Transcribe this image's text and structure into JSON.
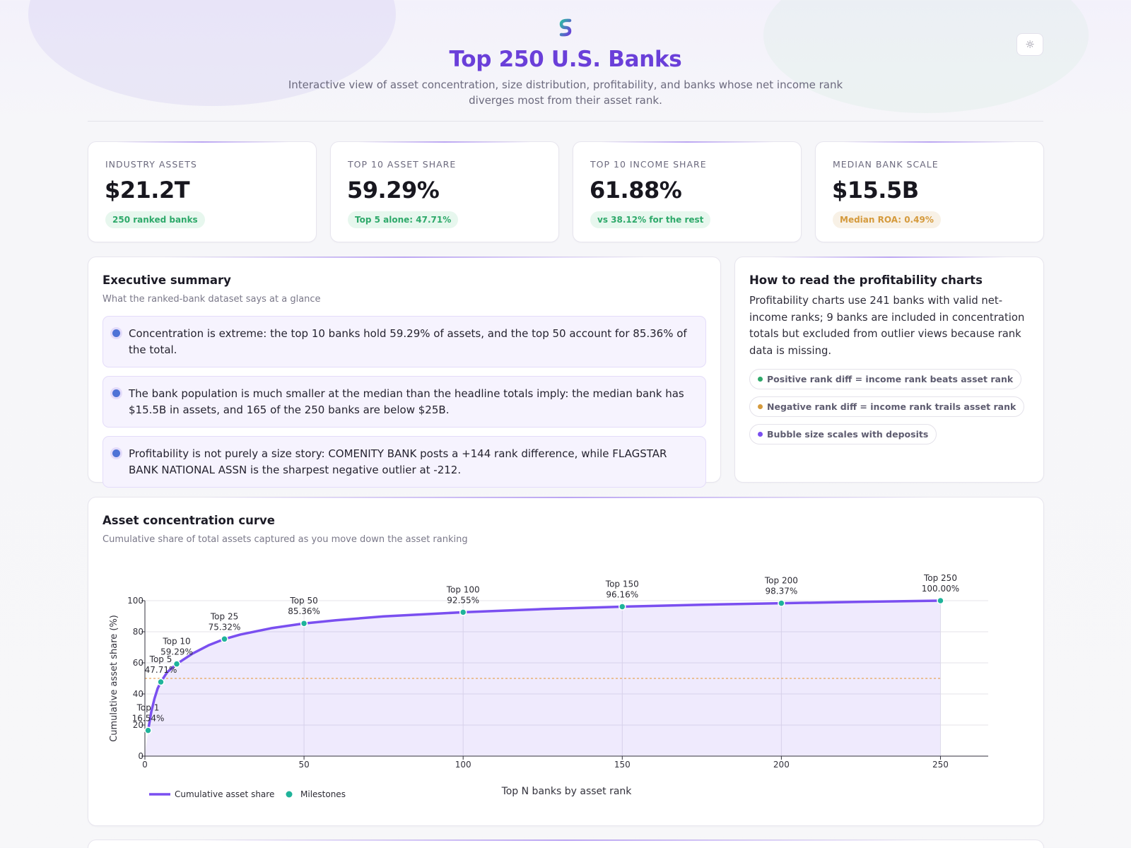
{
  "header": {
    "title": "Top 250 U.S. Banks",
    "subtitle": "Interactive view of asset concentration, size distribution, profitability, and banks whose net income rank diverges most from their asset rank.",
    "theme_icon": "sun-icon"
  },
  "kpis": [
    {
      "label": "INDUSTRY ASSETS",
      "value": "$21.2T",
      "badge": "250 ranked banks",
      "badge_color": "#2ea96a"
    },
    {
      "label": "TOP 10 ASSET SHARE",
      "value": "59.29%",
      "badge": "Top 5 alone: 47.71%",
      "badge_color": "#2ea96a"
    },
    {
      "label": "TOP 10 INCOME SHARE",
      "value": "61.88%",
      "badge": "vs 38.12% for the rest",
      "badge_color": "#2ea96a"
    },
    {
      "label": "MEDIAN BANK SCALE",
      "value": "$15.5B",
      "badge": "Median ROA: 0.49%",
      "badge_color": "#d59a3c"
    }
  ],
  "summary": {
    "title": "Executive summary",
    "subtitle": "What the ranked-bank dataset says at a glance",
    "points": [
      "Concentration is extreme: the top 10 banks hold 59.29% of assets, and the top 50 account for 85.36% of the total.",
      "The bank population is much smaller at the median than the headline totals imply: the median bank has $15.5B in assets, and 165 of the 250 banks are below $25B.",
      "Profitability is not purely a size story: COMENITY BANK posts a +144 rank difference, while FLAGSTAR BANK NATIONAL ASSN is the sharpest negative outlier at -212."
    ]
  },
  "howto": {
    "title": "How to read the profitability charts",
    "text": "Profitability charts use 241 banks with valid net-income ranks; 9 banks are included in concentration totals but excluded from outlier views because rank data is missing.",
    "pills": [
      {
        "label": "Positive rank diff = income rank beats asset rank",
        "color": "#2ea96a"
      },
      {
        "label": "Negative rank diff = income rank trails asset rank",
        "color": "#d59a3c"
      },
      {
        "label": "Bubble size scales with deposits",
        "color": "#7a4ff0"
      }
    ]
  },
  "concentration": {
    "title": "Asset concentration curve",
    "subtitle": "Cumulative share of total assets captured as you move down the asset ranking"
  },
  "chart_data": {
    "type": "line",
    "xlabel": "Top N banks by asset rank",
    "ylabel": "Cumulative asset share (%)",
    "xlim": [
      0,
      265
    ],
    "ylim": [
      0,
      100
    ],
    "x_ticks": [
      0,
      50,
      100,
      150,
      200,
      250
    ],
    "y_ticks": [
      0,
      20,
      40,
      60,
      80,
      100
    ],
    "reference_line_y": 50,
    "series": [
      {
        "name": "Cumulative asset share",
        "color": "#7a4ff0",
        "x": [
          1,
          2,
          3,
          4,
          5,
          7,
          10,
          15,
          20,
          25,
          30,
          40,
          50,
          60,
          75,
          100,
          125,
          150,
          175,
          200,
          225,
          250
        ],
        "y": [
          16.54,
          28.5,
          37.0,
          43.5,
          47.71,
          54.0,
          59.29,
          66.0,
          71.3,
          75.32,
          78.2,
          82.4,
          85.36,
          87.4,
          89.9,
          92.55,
          94.6,
          96.16,
          97.4,
          98.37,
          99.25,
          100.0
        ]
      },
      {
        "name": "Milestones",
        "color": "#1fb39a",
        "points": [
          {
            "label": "Top 1",
            "x": 1,
            "y": 16.54,
            "text": "16.54%"
          },
          {
            "label": "Top 5",
            "x": 5,
            "y": 47.71,
            "text": "47.71%"
          },
          {
            "label": "Top 10",
            "x": 10,
            "y": 59.29,
            "text": "59.29%"
          },
          {
            "label": "Top 25",
            "x": 25,
            "y": 75.32,
            "text": "75.32%"
          },
          {
            "label": "Top 50",
            "x": 50,
            "y": 85.36,
            "text": "85.36%"
          },
          {
            "label": "Top 100",
            "x": 100,
            "y": 92.55,
            "text": "92.55%"
          },
          {
            "label": "Top 150",
            "x": 150,
            "y": 96.16,
            "text": "96.16%"
          },
          {
            "label": "Top 200",
            "x": 200,
            "y": 98.37,
            "text": "98.37%"
          },
          {
            "label": "Top 250",
            "x": 250,
            "y": 100.0,
            "text": "100.00%"
          }
        ]
      }
    ],
    "legend": [
      "Cumulative asset share",
      "Milestones"
    ]
  }
}
